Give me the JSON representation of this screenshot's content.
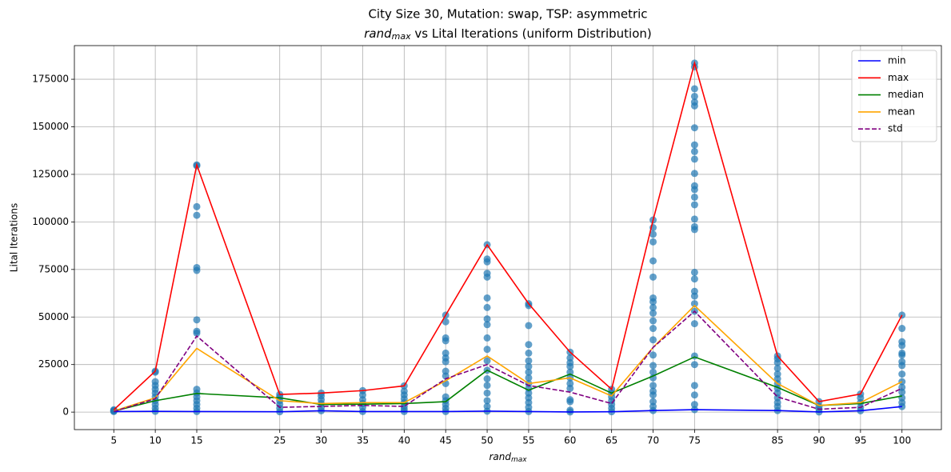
{
  "chart_data": {
    "type": "line",
    "title": "City Size 30, Mutation: swap, TSP: asymmetric",
    "subtitle": "rand",
    "subtitle_sub": "max",
    "subtitle_rest": " vs Lital Iterations (uniform Distribution)",
    "x_label": "rand",
    "x_label_sub": "max",
    "y_label": "Lital Iterations",
    "x": [
      5,
      10,
      15,
      25,
      30,
      35,
      40,
      45,
      50,
      55,
      60,
      65,
      70,
      75,
      85,
      90,
      95,
      100
    ],
    "xlim": [
      0.25,
      104.75
    ],
    "xticks": [
      5,
      10,
      15,
      25,
      30,
      35,
      40,
      45,
      50,
      55,
      60,
      65,
      70,
      75,
      85,
      90,
      95,
      100
    ],
    "ylim": [
      -9200,
      192700
    ],
    "yticks": [
      0,
      25000,
      50000,
      75000,
      100000,
      125000,
      150000,
      175000
    ],
    "grid": true,
    "legend": "upper right",
    "series": [
      {
        "name": "min",
        "color": "#0000ff",
        "dash": false,
        "values": [
          300,
          400,
          300,
          200,
          700,
          300,
          300,
          300,
          500,
          300,
          100,
          200,
          800,
          1300,
          800,
          100,
          700,
          2900
        ]
      },
      {
        "name": "max",
        "color": "#ff0000",
        "dash": false,
        "values": [
          1200,
          21500,
          130000,
          9300,
          10000,
          11300,
          13800,
          51000,
          88000,
          57000,
          31500,
          12000,
          101000,
          183500,
          29500,
          5500,
          9500,
          51000
        ]
      },
      {
        "name": "median",
        "color": "#008000",
        "dash": false,
        "values": [
          500,
          6000,
          9800,
          7500,
          4000,
          4200,
          4500,
          5500,
          22000,
          11500,
          20000,
          10000,
          19000,
          29000,
          13000,
          3500,
          4500,
          8500
        ]
      },
      {
        "name": "mean",
        "color": "#ffa500",
        "dash": false,
        "values": [
          600,
          7500,
          33500,
          6000,
          4500,
          5000,
          5000,
          16500,
          29500,
          15000,
          18000,
          8500,
          34000,
          56000,
          15000,
          3500,
          5000,
          16000
        ]
      },
      {
        "name": "std",
        "color": "#800080",
        "dash": true,
        "values": [
          300,
          7000,
          40000,
          2500,
          3000,
          3500,
          3000,
          17500,
          25000,
          14000,
          10500,
          4500,
          34000,
          53000,
          8000,
          1500,
          2500,
          12500
        ]
      }
    ],
    "points": {
      "color": "#1f77b4",
      "x": [
        5,
        5,
        5,
        5,
        10,
        10,
        10,
        10,
        10,
        10,
        10,
        10,
        10,
        10,
        10,
        15,
        15,
        15,
        15,
        15,
        15,
        15,
        15,
        15,
        15,
        15,
        15,
        15,
        15,
        15,
        15,
        25,
        25,
        25,
        25,
        25,
        25,
        30,
        30,
        30,
        30,
        30,
        30,
        35,
        35,
        35,
        35,
        35,
        35,
        40,
        40,
        40,
        40,
        40,
        40,
        40,
        40,
        45,
        45,
        45,
        45,
        45,
        45,
        45,
        45,
        45,
        45,
        45,
        45,
        45,
        45,
        45,
        50,
        50,
        50,
        50,
        50,
        50,
        50,
        50,
        50,
        50,
        50,
        50,
        50,
        50,
        50,
        50,
        50,
        50,
        50,
        55,
        55,
        55,
        55,
        55,
        55,
        55,
        55,
        55,
        55,
        55,
        55,
        55,
        55,
        55,
        55,
        60,
        60,
        60,
        60,
        60,
        60,
        60,
        60,
        60,
        60,
        60,
        60,
        65,
        65,
        65,
        65,
        65,
        65,
        65,
        70,
        70,
        70,
        70,
        70,
        70,
        70,
        70,
        70,
        70,
        70,
        70,
        70,
        70,
        70,
        70,
        70,
        70,
        70,
        70,
        70,
        70,
        70,
        75,
        75,
        75,
        75,
        75,
        75,
        75,
        75,
        75,
        75,
        75,
        75,
        75,
        75,
        75,
        75,
        75,
        75,
        75,
        75,
        75,
        75,
        75,
        75,
        75,
        75,
        75,
        75,
        75,
        75,
        75,
        85,
        85,
        85,
        85,
        85,
        85,
        85,
        85,
        85,
        85,
        85,
        85,
        85,
        90,
        90,
        90,
        90,
        95,
        95,
        95,
        95,
        95,
        100,
        100,
        100,
        100,
        100,
        100,
        100,
        100,
        100,
        100,
        100,
        100,
        100,
        100,
        100
      ],
      "y": [
        300,
        600,
        900,
        1200,
        400,
        2000,
        4000,
        6000,
        8000,
        10000,
        12000,
        14000,
        16000,
        21000,
        21500,
        300,
        2000,
        4000,
        6000,
        8000,
        10000,
        12000,
        41500,
        42500,
        48500,
        74500,
        76000,
        103500,
        108000,
        129500,
        130000,
        200,
        2000,
        4000,
        6000,
        8000,
        9300,
        700,
        2500,
        4500,
        6500,
        8500,
        10000,
        300,
        2500,
        4500,
        6500,
        9000,
        11300,
        300,
        1500,
        3000,
        5000,
        7000,
        9000,
        11000,
        13800,
        300,
        2000,
        4000,
        6000,
        8000,
        15000,
        19000,
        21500,
        26500,
        28500,
        31000,
        37500,
        39000,
        47500,
        51000,
        500,
        3000,
        6000,
        10000,
        14000,
        17500,
        22000,
        27000,
        33000,
        39000,
        46000,
        49000,
        55000,
        60000,
        71000,
        73000,
        79000,
        80500,
        88000,
        300,
        2500,
        5000,
        7500,
        10000,
        12500,
        15000,
        18000,
        21000,
        24000,
        27000,
        31000,
        35500,
        45500,
        56000,
        57000,
        100,
        1000,
        5500,
        6500,
        12500,
        15000,
        18000,
        21000,
        24000,
        26000,
        28500,
        31500,
        200,
        2000,
        4000,
        6000,
        8000,
        10000,
        12000,
        800,
        3000,
        5500,
        9000,
        11000,
        14000,
        18000,
        21000,
        24500,
        30000,
        38000,
        44000,
        48000,
        52000,
        55000,
        58000,
        60000,
        71000,
        79500,
        89500,
        93500,
        97000,
        101000,
        1300,
        4000,
        9000,
        14000,
        25000,
        29500,
        46500,
        53000,
        57000,
        61000,
        63500,
        70000,
        73500,
        96000,
        97500,
        101500,
        109000,
        113000,
        117000,
        119000,
        125500,
        133000,
        137000,
        140500,
        149500,
        161000,
        163000,
        166000,
        170000,
        181500,
        183500,
        800,
        3000,
        5000,
        7500,
        10000,
        12500,
        15000,
        17500,
        20000,
        23000,
        26000,
        28000,
        29500,
        100,
        1500,
        3000,
        5500,
        700,
        2500,
        5000,
        7500,
        9500,
        2900,
        5000,
        7500,
        10500,
        13000,
        16000,
        20000,
        24500,
        26500,
        30000,
        31000,
        35000,
        37000,
        44000,
        51000
      ]
    }
  }
}
